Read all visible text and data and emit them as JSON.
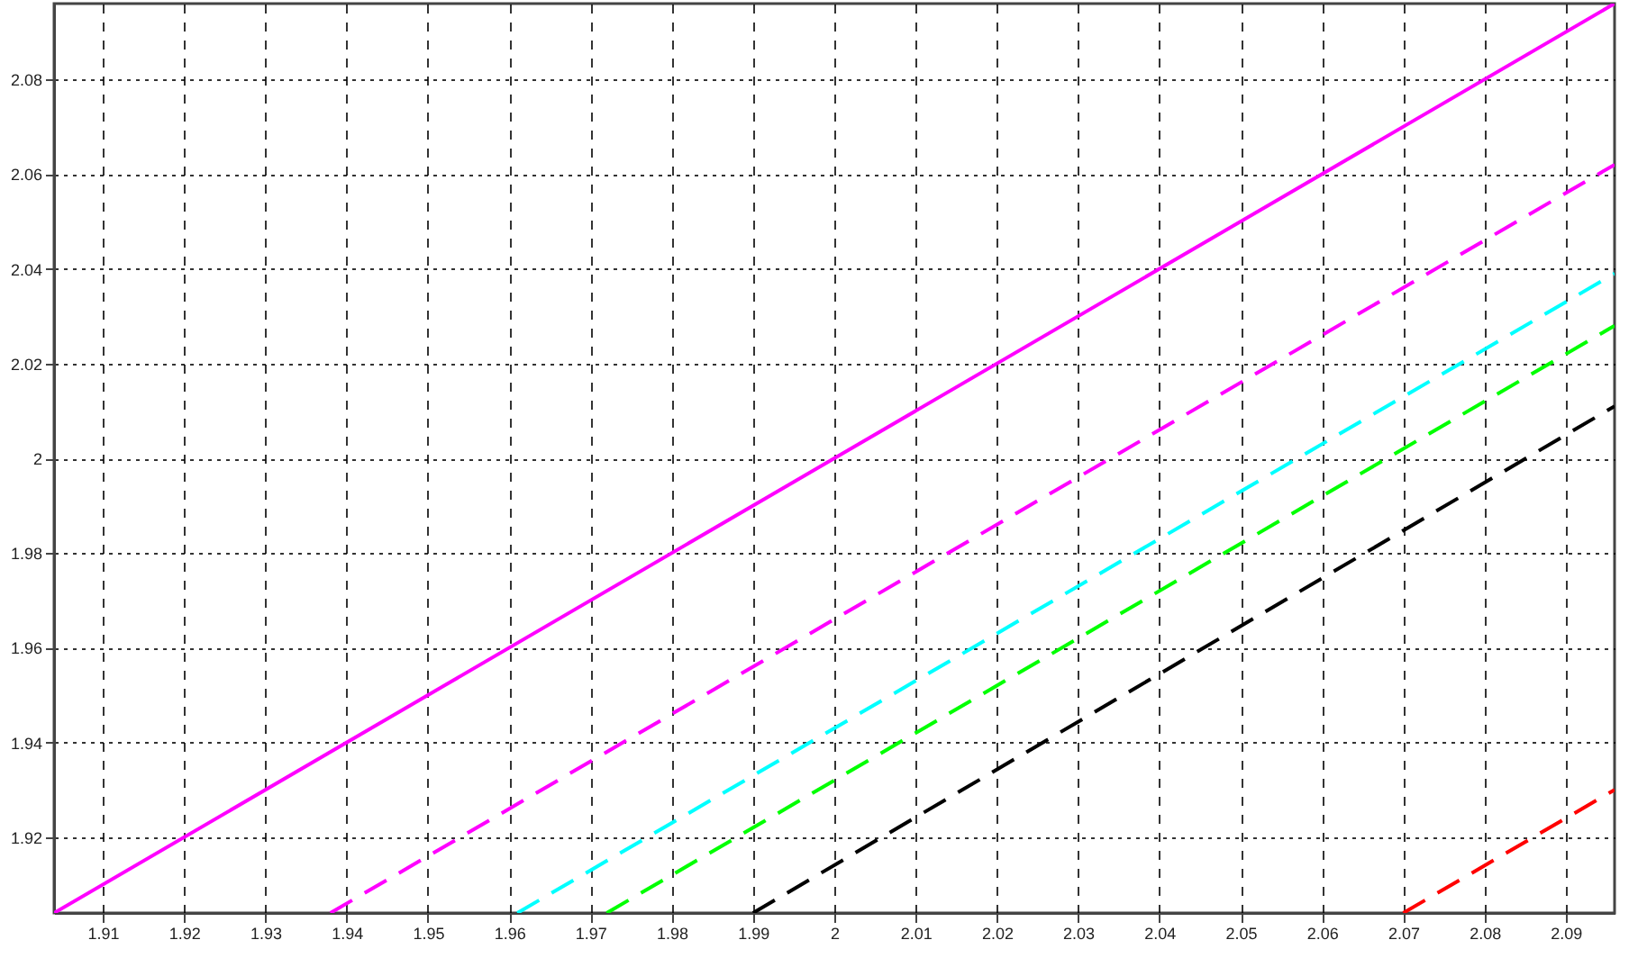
{
  "chart_data": {
    "type": "line",
    "xlim": [
      1.904,
      2.096
    ],
    "ylim": [
      1.904,
      2.096
    ],
    "xticks": [
      1.91,
      1.92,
      1.93,
      1.94,
      1.95,
      1.96,
      1.97,
      1.98,
      1.99,
      2,
      2.01,
      2.02,
      2.03,
      2.04,
      2.05,
      2.06,
      2.07,
      2.08,
      2.09
    ],
    "yticks": [
      1.92,
      1.94,
      1.96,
      1.98,
      2,
      2.02,
      2.04,
      2.06,
      2.08
    ],
    "grid": true,
    "series": [
      {
        "color": "#ff00ff",
        "line_style": "solid",
        "x": [
          1.904,
          2.096
        ],
        "values": [
          1.904,
          2.096
        ]
      },
      {
        "color": "#ff00ff",
        "line_style": "dashed",
        "x": [
          1.938,
          2.096
        ],
        "values": [
          1.904,
          2.062
        ]
      },
      {
        "color": "#00ffff",
        "line_style": "dashed",
        "x": [
          1.961,
          2.096
        ],
        "values": [
          1.904,
          2.039
        ]
      },
      {
        "color": "#00ff00",
        "line_style": "dashed",
        "x": [
          1.972,
          2.096
        ],
        "values": [
          1.904,
          2.028
        ]
      },
      {
        "color": "#000000",
        "line_style": "dashed",
        "x": [
          1.99,
          2.096
        ],
        "values": [
          1.904,
          2.011
        ]
      },
      {
        "color": "#ff0000",
        "line_style": "dashed",
        "x": [
          2.07,
          2.096
        ],
        "values": [
          1.904,
          1.93
        ]
      }
    ]
  }
}
